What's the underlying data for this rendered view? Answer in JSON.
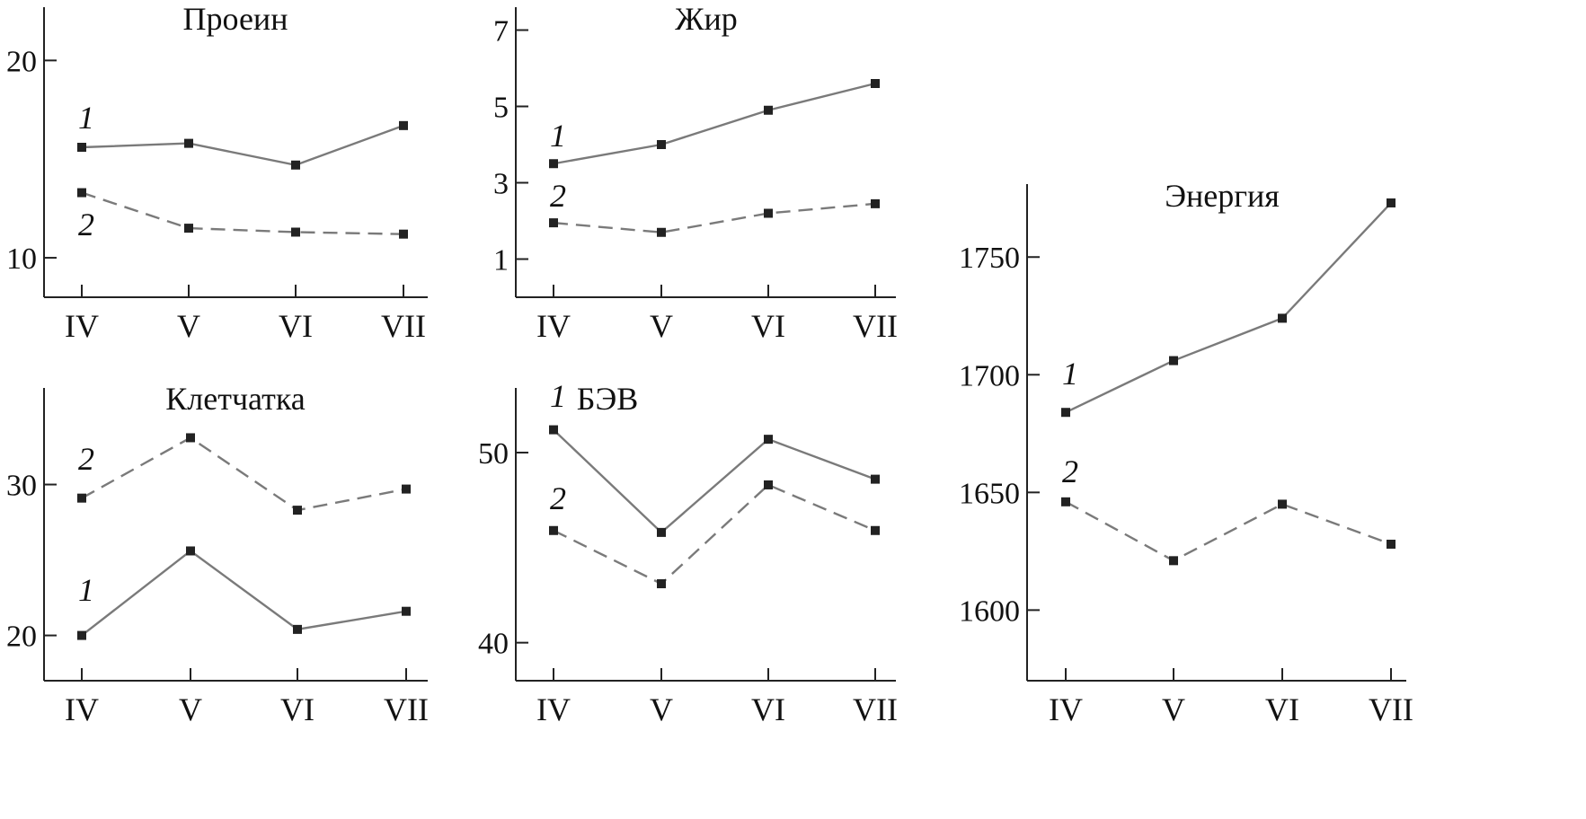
{
  "chart_data": [
    {
      "type": "line",
      "title": "Проеин",
      "categories": [
        "IV",
        "V",
        "VI",
        "VII"
      ],
      "yticks": [
        10,
        20
      ],
      "ylim": [
        8,
        22.7
      ],
      "series": [
        {
          "name": "1",
          "style": "solid",
          "values": [
            15.6,
            15.8,
            14.7,
            16.7
          ]
        },
        {
          "name": "2",
          "style": "dashed",
          "values": [
            13.3,
            11.5,
            11.3,
            11.2
          ]
        }
      ]
    },
    {
      "type": "line",
      "title": "Жир",
      "categories": [
        "IV",
        "V",
        "VI",
        "VII"
      ],
      "yticks": [
        1,
        3,
        5,
        7
      ],
      "ylim": [
        -0.0,
        7.6
      ],
      "series": [
        {
          "name": "1",
          "style": "solid",
          "values": [
            3.5,
            4.0,
            4.9,
            5.6
          ]
        },
        {
          "name": "2",
          "style": "dashed",
          "values": [
            1.95,
            1.7,
            2.2,
            2.45
          ]
        }
      ]
    },
    {
      "type": "line",
      "title": "Энергия",
      "categories": [
        "IV",
        "V",
        "VI",
        "VII"
      ],
      "yticks": [
        1600,
        1650,
        1700,
        1750
      ],
      "ylim": [
        1570,
        1781
      ],
      "series": [
        {
          "name": "1",
          "style": "solid",
          "values": [
            1684,
            1706,
            1724,
            1773
          ]
        },
        {
          "name": "2",
          "style": "dashed",
          "values": [
            1646,
            1621,
            1645,
            1628
          ]
        }
      ]
    },
    {
      "type": "line",
      "title": "Клетчатка",
      "categories": [
        "IV",
        "V",
        "VI",
        "VII"
      ],
      "yticks": [
        20,
        30
      ],
      "ylim": [
        17,
        36.4
      ],
      "series": [
        {
          "name": "1",
          "style": "solid",
          "values": [
            20.0,
            25.6,
            20.4,
            21.6
          ]
        },
        {
          "name": "2",
          "style": "dashed",
          "values": [
            29.1,
            33.1,
            28.3,
            29.7
          ]
        }
      ]
    },
    {
      "type": "line",
      "title": "БЭВ",
      "categories": [
        "IV",
        "V",
        "VI",
        "VII"
      ],
      "yticks": [
        40,
        50
      ],
      "ylim": [
        38,
        53.4
      ],
      "series": [
        {
          "name": "1",
          "style": "solid",
          "values": [
            51.2,
            45.8,
            50.7,
            48.6
          ]
        },
        {
          "name": "2",
          "style": "dashed",
          "values": [
            45.9,
            43.1,
            48.3,
            45.9
          ]
        }
      ]
    }
  ]
}
